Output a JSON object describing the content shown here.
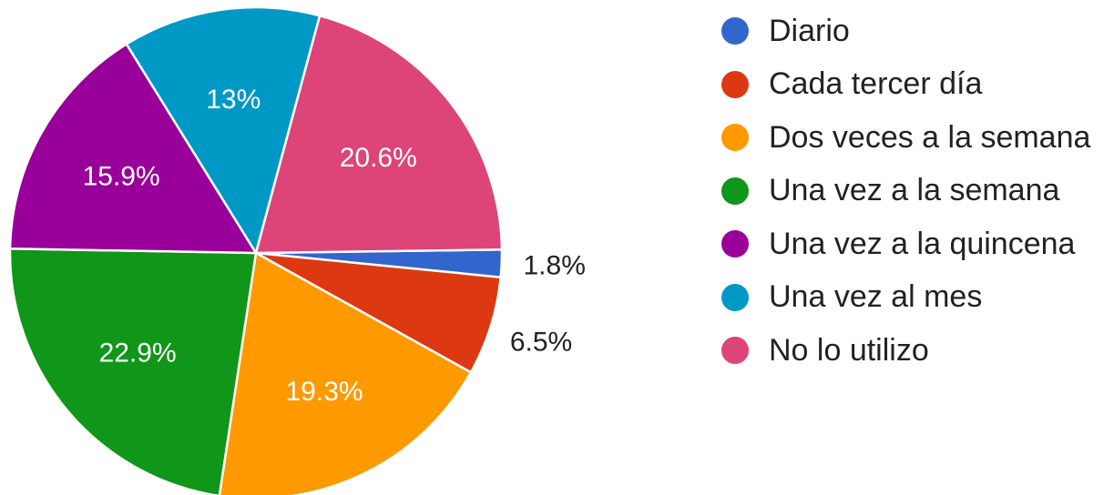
{
  "chart_data": {
    "type": "pie",
    "categories": [
      "Diario",
      "Cada tercer día",
      "Dos veces a la semana",
      "Una vez a la semana",
      "Una vez a la quincena",
      "Una vez al mes",
      "No lo utilizo"
    ],
    "values": [
      1.8,
      6.5,
      19.3,
      22.9,
      15.9,
      13,
      20.6
    ],
    "data_labels": [
      "1.8%",
      "6.5%",
      "19.3%",
      "22.9%",
      "15.9%",
      "13%",
      "20.6%"
    ],
    "colors": [
      "#3366cc",
      "#dc3912",
      "#ff9900",
      "#109618",
      "#990099",
      "#0099c6",
      "#dd4477"
    ],
    "legend_position": "right",
    "title": ""
  }
}
